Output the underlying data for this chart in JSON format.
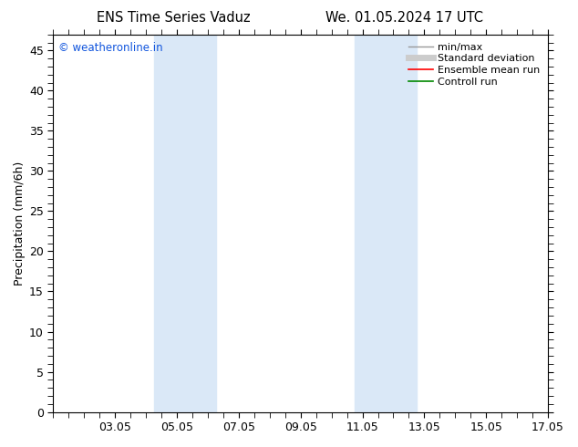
{
  "title_left": "ENS Time Series Vaduz",
  "title_right": "We. 01.05.2024 17 UTC",
  "ylabel": "Precipitation (mm/6h)",
  "xlabel": "",
  "xlim": [
    1,
    17
  ],
  "ylim": [
    0,
    47
  ],
  "yticks": [
    0,
    5,
    10,
    15,
    20,
    25,
    30,
    35,
    40,
    45
  ],
  "xtick_labels": [
    "03.05",
    "05.05",
    "07.05",
    "09.05",
    "11.05",
    "13.05",
    "15.05",
    "17.05"
  ],
  "xtick_positions": [
    3,
    5,
    7,
    9,
    11,
    13,
    15,
    17
  ],
  "bg_color": "#ffffff",
  "plot_bg_color": "#ffffff",
  "shaded_regions": [
    {
      "xmin": 4.25,
      "xmax": 6.25,
      "color": "#dae8f7"
    },
    {
      "xmin": 10.75,
      "xmax": 12.75,
      "color": "#dae8f7"
    }
  ],
  "copyright_text": "© weatheronline.in",
  "copyright_color": "#1155dd",
  "legend_items": [
    {
      "label": "min/max",
      "color": "#999999",
      "lw": 1.0,
      "ls": "-"
    },
    {
      "label": "Standard deviation",
      "color": "#cccccc",
      "lw": 5,
      "ls": "-"
    },
    {
      "label": "Ensemble mean run",
      "color": "#ff0000",
      "lw": 1.2,
      "ls": "-"
    },
    {
      "label": "Controll run",
      "color": "#008800",
      "lw": 1.2,
      "ls": "-"
    }
  ],
  "tick_color": "#000000",
  "grid": false,
  "title_fontsize": 10.5,
  "axis_label_fontsize": 9,
  "tick_fontsize": 9,
  "legend_fontsize": 8,
  "copyright_fontsize": 8.5
}
